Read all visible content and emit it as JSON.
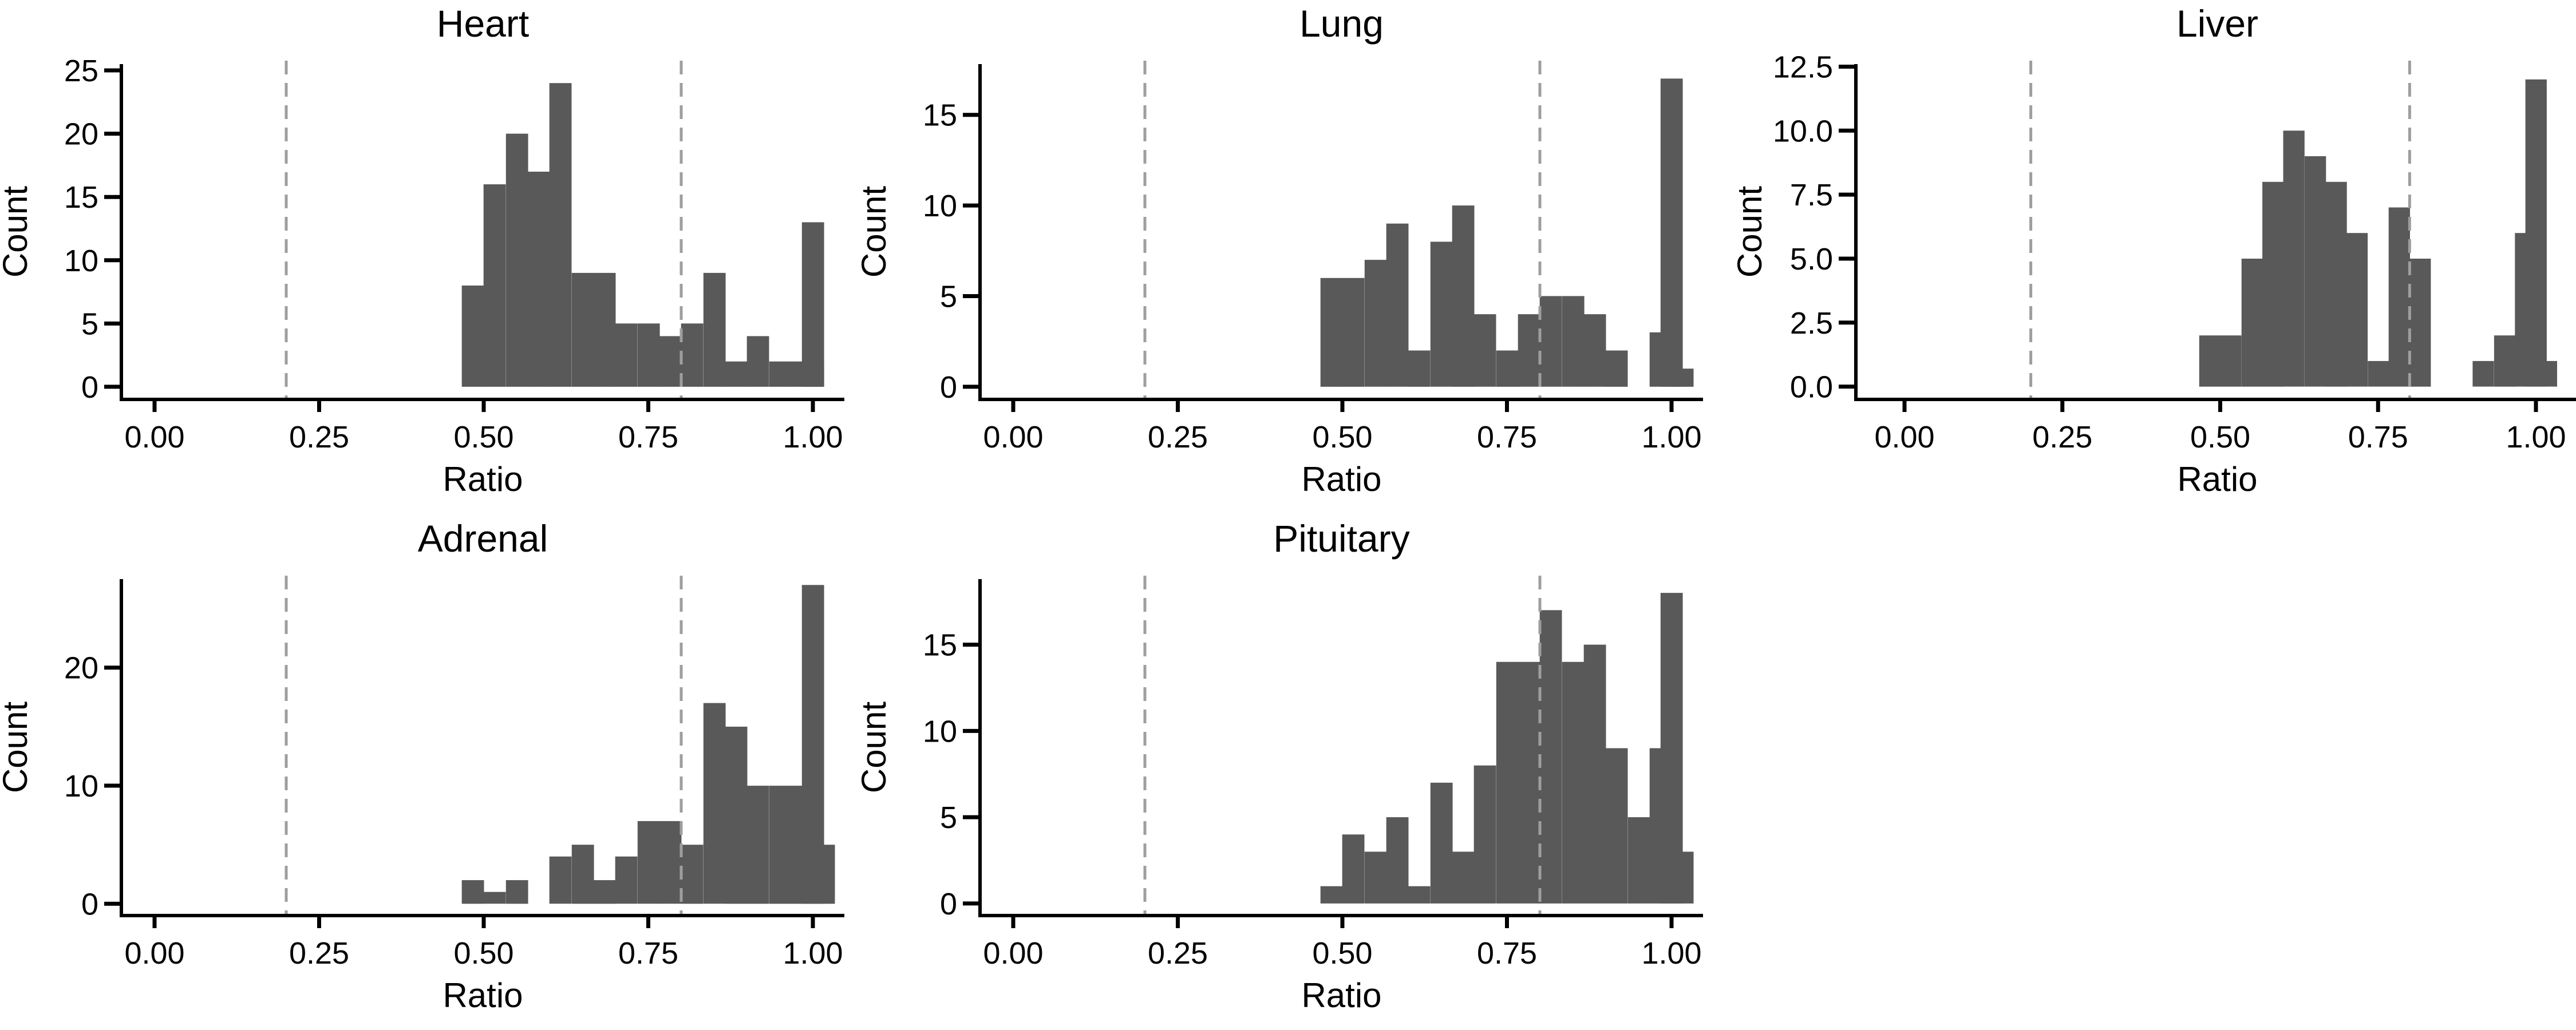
{
  "chart_data": [
    {
      "type": "bar",
      "title": "Heart",
      "xlabel": "Ratio",
      "ylabel": "Count",
      "xlim": [
        -0.05,
        1.05
      ],
      "ylim": [
        -1,
        25.5
      ],
      "xticks": [
        0.0,
        0.25,
        0.5,
        0.75,
        1.0
      ],
      "xtick_labels": [
        "0.00",
        "0.25",
        "0.50",
        "0.75",
        "1.00"
      ],
      "yticks": [
        0,
        5,
        10,
        15,
        20,
        25
      ],
      "ytick_labels": [
        "0",
        "5",
        "10",
        "15",
        "20",
        "25"
      ],
      "ref_lines": [
        0.2,
        0.8
      ],
      "bin_width": 0.0333,
      "bars": [
        {
          "x": 0.5,
          "count": 8
        },
        {
          "x": 0.533,
          "count": 16
        },
        {
          "x": 0.567,
          "count": 20
        },
        {
          "x": 0.6,
          "count": 17
        },
        {
          "x": 0.633,
          "count": 24
        },
        {
          "x": 0.667,
          "count": 9
        },
        {
          "x": 0.7,
          "count": 9
        },
        {
          "x": 0.733,
          "count": 5
        },
        {
          "x": 0.767,
          "count": 5
        },
        {
          "x": 0.8,
          "count": 4
        },
        {
          "x": 0.833,
          "count": 5
        },
        {
          "x": 0.867,
          "count": 9
        },
        {
          "x": 0.9,
          "count": 2
        },
        {
          "x": 0.933,
          "count": 4
        },
        {
          "x": 0.967,
          "count": 2
        },
        {
          "x": 1.0,
          "count": 2
        },
        {
          "x": 1.067,
          "count": 2
        },
        {
          "x": 1.1,
          "count": 13
        }
      ],
      "grid": false
    },
    {
      "type": "bar",
      "title": "Lung",
      "xlabel": "Ratio",
      "ylabel": "Count",
      "xlim": [
        -0.05,
        1.05
      ],
      "ylim": [
        -0.7,
        17.8
      ],
      "xticks": [
        0.0,
        0.25,
        0.5,
        0.75,
        1.0
      ],
      "xtick_labels": [
        "0.00",
        "0.25",
        "0.50",
        "0.75",
        "1.00"
      ],
      "yticks": [
        0,
        5,
        10,
        15
      ],
      "ytick_labels": [
        "0",
        "5",
        "10",
        "15"
      ],
      "ref_lines": [
        0.2,
        0.8
      ],
      "bars": [
        {
          "x": 0.5,
          "count": 6
        },
        {
          "x": 0.533,
          "count": 6
        },
        {
          "x": 0.567,
          "count": 7
        },
        {
          "x": 0.6,
          "count": 9
        },
        {
          "x": 0.633,
          "count": 2
        },
        {
          "x": 0.667,
          "count": 8
        },
        {
          "x": 0.7,
          "count": 10
        },
        {
          "x": 0.733,
          "count": 4
        },
        {
          "x": 0.767,
          "count": 2
        },
        {
          "x": 0.8,
          "count": 4
        },
        {
          "x": 0.833,
          "count": 5
        },
        {
          "x": 0.867,
          "count": 5
        },
        {
          "x": 0.9,
          "count": 4
        },
        {
          "x": 0.933,
          "count": 2
        },
        {
          "x": 0.967,
          "count": 0
        },
        {
          "x": 1.0,
          "count": 3
        },
        {
          "x": 1.033,
          "count": 1
        },
        {
          "x": 1.1,
          "count": 17
        }
      ],
      "grid": false
    },
    {
      "type": "bar",
      "title": "Liver",
      "xlabel": "Ratio",
      "ylabel": "Count",
      "xlim": [
        -0.05,
        1.05
      ],
      "ylim": [
        -0.5,
        12.6
      ],
      "xticks": [
        0.0,
        0.25,
        0.5,
        0.75,
        1.0
      ],
      "xtick_labels": [
        "0.00",
        "0.25",
        "0.50",
        "0.75",
        "1.00"
      ],
      "yticks": [
        0,
        2.5,
        5,
        7.5,
        10,
        12.5
      ],
      "ytick_labels": [
        "0.0",
        "2.5",
        "5.0",
        "7.5",
        "10.0",
        "12.5"
      ],
      "ref_lines": [
        0.2,
        0.8
      ],
      "bars": [
        {
          "x": 0.5,
          "count": 2
        },
        {
          "x": 0.533,
          "count": 2
        },
        {
          "x": 0.567,
          "count": 5
        },
        {
          "x": 0.6,
          "count": 8
        },
        {
          "x": 0.633,
          "count": 10
        },
        {
          "x": 0.667,
          "count": 9
        },
        {
          "x": 0.7,
          "count": 8
        },
        {
          "x": 0.733,
          "count": 6
        },
        {
          "x": 0.767,
          "count": 1
        },
        {
          "x": 0.8,
          "count": 7
        },
        {
          "x": 0.833,
          "count": 5
        },
        {
          "x": 0.867,
          "count": 0
        },
        {
          "x": 0.9,
          "count": 0
        },
        {
          "x": 0.933,
          "count": 1
        },
        {
          "x": 0.967,
          "count": 2
        },
        {
          "x": 1.0,
          "count": 6
        },
        {
          "x": 1.033,
          "count": 1
        },
        {
          "x": 1.1,
          "count": 12
        }
      ],
      "grid": false
    },
    {
      "type": "bar",
      "title": "Adrenal",
      "xlabel": "Ratio",
      "ylabel": "Count",
      "xlim": [
        -0.05,
        1.05
      ],
      "ylim": [
        -1,
        27.5
      ],
      "xticks": [
        0.0,
        0.25,
        0.5,
        0.75,
        1.0
      ],
      "xtick_labels": [
        "0.00",
        "0.25",
        "0.50",
        "0.75",
        "1.00"
      ],
      "yticks": [
        0,
        10,
        20
      ],
      "ytick_labels": [
        "0",
        "10",
        "20"
      ],
      "ref_lines": [
        0.2,
        0.8
      ],
      "bars": [
        {
          "x": 0.5,
          "count": 2
        },
        {
          "x": 0.533,
          "count": 1
        },
        {
          "x": 0.567,
          "count": 2
        },
        {
          "x": 0.633,
          "count": 4
        },
        {
          "x": 0.667,
          "count": 5
        },
        {
          "x": 0.7,
          "count": 2
        },
        {
          "x": 0.733,
          "count": 4
        },
        {
          "x": 0.767,
          "count": 7
        },
        {
          "x": 0.8,
          "count": 7
        },
        {
          "x": 0.833,
          "count": 5
        },
        {
          "x": 0.867,
          "count": 17
        },
        {
          "x": 0.9,
          "count": 15
        },
        {
          "x": 0.933,
          "count": 10
        },
        {
          "x": 0.967,
          "count": 10
        },
        {
          "x": 1.0,
          "count": 10
        },
        {
          "x": 1.033,
          "count": 5
        },
        {
          "x": 1.1,
          "count": 27
        }
      ],
      "grid": false
    },
    {
      "type": "bar",
      "title": "Pituitary",
      "xlabel": "Ratio",
      "ylabel": "Count",
      "xlim": [
        -0.05,
        1.05
      ],
      "ylim": [
        -0.7,
        18.8
      ],
      "xticks": [
        0.0,
        0.25,
        0.5,
        0.75,
        1.0
      ],
      "xtick_labels": [
        "0.00",
        "0.25",
        "0.50",
        "0.75",
        "1.00"
      ],
      "yticks": [
        0,
        5,
        10,
        15
      ],
      "ytick_labels": [
        "0",
        "5",
        "10",
        "15"
      ],
      "ref_lines": [
        0.2,
        0.8
      ],
      "bars": [
        {
          "x": 0.5,
          "count": 1
        },
        {
          "x": 0.533,
          "count": 4
        },
        {
          "x": 0.567,
          "count": 3
        },
        {
          "x": 0.6,
          "count": 5
        },
        {
          "x": 0.633,
          "count": 1
        },
        {
          "x": 0.667,
          "count": 7
        },
        {
          "x": 0.7,
          "count": 3
        },
        {
          "x": 0.733,
          "count": 8
        },
        {
          "x": 0.767,
          "count": 14
        },
        {
          "x": 0.8,
          "count": 14
        },
        {
          "x": 0.833,
          "count": 17
        },
        {
          "x": 0.867,
          "count": 14
        },
        {
          "x": 0.9,
          "count": 15
        },
        {
          "x": 0.933,
          "count": 9
        },
        {
          "x": 0.967,
          "count": 5
        },
        {
          "x": 1.0,
          "count": 9
        },
        {
          "x": 1.033,
          "count": 3
        },
        {
          "x": 1.1,
          "count": 18
        }
      ],
      "grid": false
    }
  ],
  "colors": {
    "bar_fill": "#595959",
    "ref_line": "#9e9e9e",
    "axis": "#000000"
  }
}
